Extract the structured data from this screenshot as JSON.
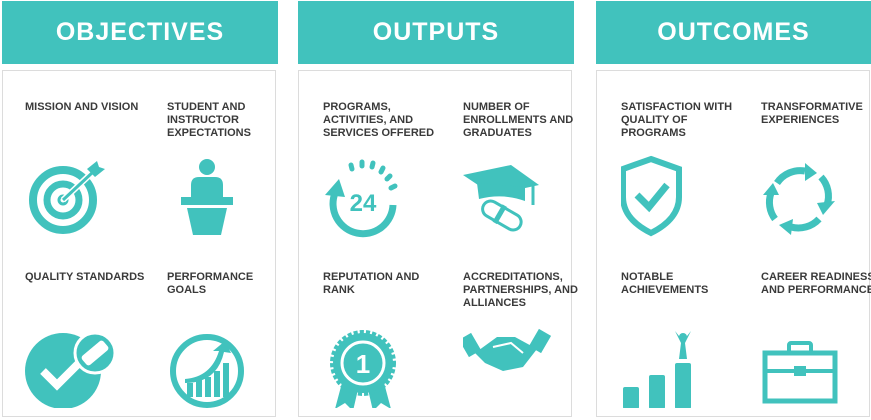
{
  "accent_color": "#41c2bd",
  "columns": [
    {
      "title": "OBJECTIVES",
      "items": [
        {
          "label": "MISSION AND VISION",
          "icon": "target-icon"
        },
        {
          "label": "STUDENT AND INSTRUCTOR EXPECTATIONS",
          "icon": "speaker-podium-icon"
        },
        {
          "label": "QUALITY STANDARDS",
          "icon": "checkmark-badge-icon"
        },
        {
          "label": "PERFORMANCE GOALS",
          "icon": "growth-chart-icon"
        }
      ]
    },
    {
      "title": "OUTPUTS",
      "items": [
        {
          "label": "PROGRAMS, ACTIVITIES, AND SERVICES OFFERED",
          "icon": "24-hour-icon",
          "text": "24"
        },
        {
          "label": "NUMBER OF ENROLLMENTS AND GRADUATES",
          "icon": "graduation-cap-icon"
        },
        {
          "label": "REPUTATION AND RANK",
          "icon": "award-ribbon-icon",
          "text": "1"
        },
        {
          "label": "ACCREDITATIONS, PARTNERSHIPS, AND ALLIANCES",
          "icon": "handshake-icon"
        }
      ]
    },
    {
      "title": "OUTCOMES",
      "items": [
        {
          "label": "SATISFACTION WITH QUALITY OF PROGRAMS",
          "icon": "shield-check-icon"
        },
        {
          "label": "TRANSFORMATIVE EXPERIENCES",
          "icon": "cycle-arrows-icon"
        },
        {
          "label": "NOTABLE ACHIEVEMENTS",
          "icon": "podium-winner-icon"
        },
        {
          "label": "CAREER READINESS AND PERFORMANCE",
          "icon": "briefcase-icon"
        }
      ]
    }
  ]
}
